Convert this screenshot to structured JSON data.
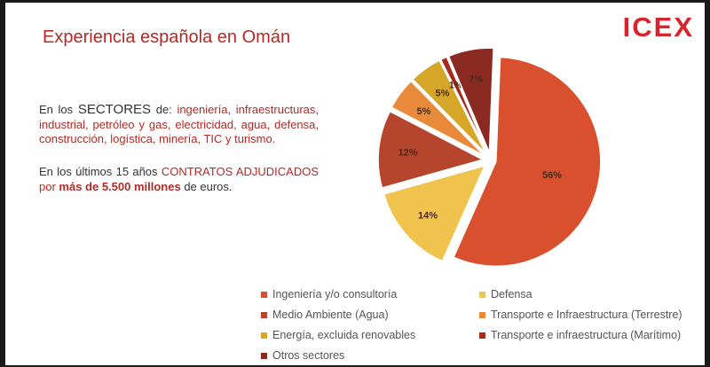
{
  "logo": "ICEX",
  "title": "Experiencia española en Omán",
  "para1": {
    "prefix": "En los ",
    "keyword": "SECTORES",
    "mid": " de: ",
    "sectors": "ingeniería, infraestructuras, industrial, petróleo y gas, electricidad, agua, defensa, construcción, logística, minería, TIC y turismo."
  },
  "para2": {
    "prefix": "En los últimos 15 años ",
    "contracts": "CONTRATOS ADJUDICADOS",
    "mid": " por ",
    "amount": "más de 5.500 millones",
    "suffix": " de euros."
  },
  "chart_data": {
    "type": "pie",
    "title": "",
    "slices": [
      {
        "label": "Ingeniería y/o consultoría",
        "value": 56,
        "display": "56%",
        "color": "#d9502e"
      },
      {
        "label": "Defensa",
        "value": 14,
        "display": "14%",
        "color": "#f0c24e"
      },
      {
        "label": "Medio Ambiente (Agua)",
        "value": 12,
        "display": "12%",
        "color": "#b5452c"
      },
      {
        "label": "Transporte e Infraestructura (Terrestre)",
        "value": 5,
        "display": "5%",
        "color": "#e98a3a"
      },
      {
        "label": "Energía, excluida renovables",
        "value": 5,
        "display": "5%",
        "color": "#d6a629"
      },
      {
        "label": "Transporte e infraestructura (Marítimo)",
        "value": 1,
        "display": "1%",
        "color": "#a8281e"
      },
      {
        "label": "Otros sectores",
        "value": 7,
        "display": "7%",
        "color": "#8a2a22"
      }
    ],
    "legend_position": "bottom"
  }
}
